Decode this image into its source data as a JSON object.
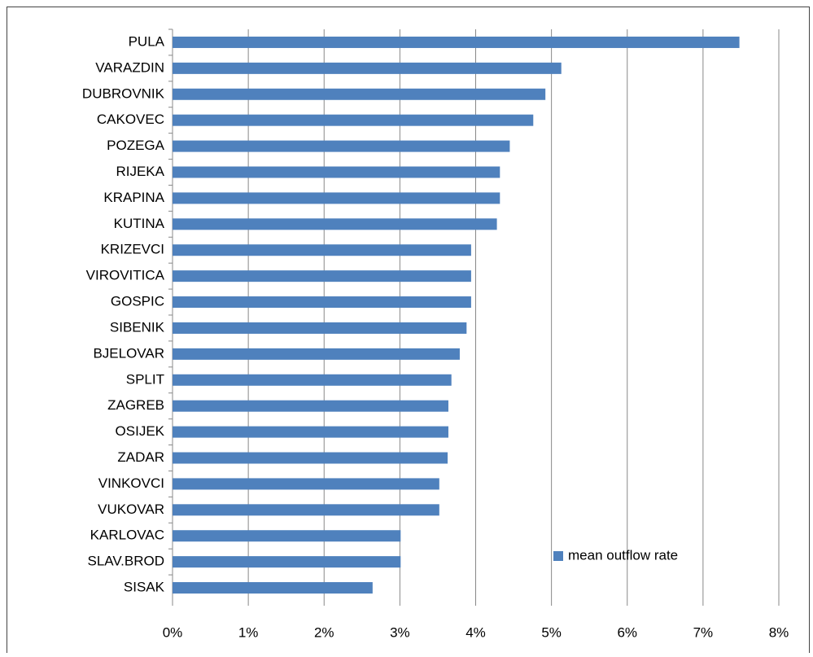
{
  "chart_data": {
    "type": "bar",
    "orientation": "horizontal",
    "categories": [
      "PULA",
      "VARAZDIN",
      "DUBROVNIK",
      "CAKOVEC",
      "POZEGA",
      "RIJEKA",
      "KRAPINA",
      "KUTINA",
      "KRIZEVCI",
      "VIROVITICA",
      "GOSPIC",
      "SIBENIK",
      "BJELOVAR",
      "SPLIT",
      "ZAGREB",
      "OSIJEK",
      "ZADAR",
      "VINKOVCI",
      "VUKOVAR",
      "KARLOVAC",
      "SLAV.BROD",
      "SISAK"
    ],
    "series": [
      {
        "name": "mean outflow rate",
        "color": "#4f81bd",
        "values": [
          7.48,
          5.13,
          4.92,
          4.76,
          4.45,
          4.32,
          4.32,
          4.28,
          3.94,
          3.94,
          3.94,
          3.88,
          3.79,
          3.68,
          3.64,
          3.64,
          3.63,
          3.52,
          3.52,
          3.01,
          3.01,
          2.64
        ]
      }
    ],
    "xlim": [
      0,
      8
    ],
    "xticks": [
      {
        "value": 0,
        "label": "0%"
      },
      {
        "value": 1,
        "label": "1%"
      },
      {
        "value": 2,
        "label": "2%"
      },
      {
        "value": 3,
        "label": "3%"
      },
      {
        "value": 4,
        "label": "4%"
      },
      {
        "value": 5,
        "label": "5%"
      },
      {
        "value": 6,
        "label": "6%"
      },
      {
        "value": 7,
        "label": "7%"
      },
      {
        "value": 8,
        "label": "8%"
      }
    ],
    "grid": true,
    "legend": "lower right"
  }
}
